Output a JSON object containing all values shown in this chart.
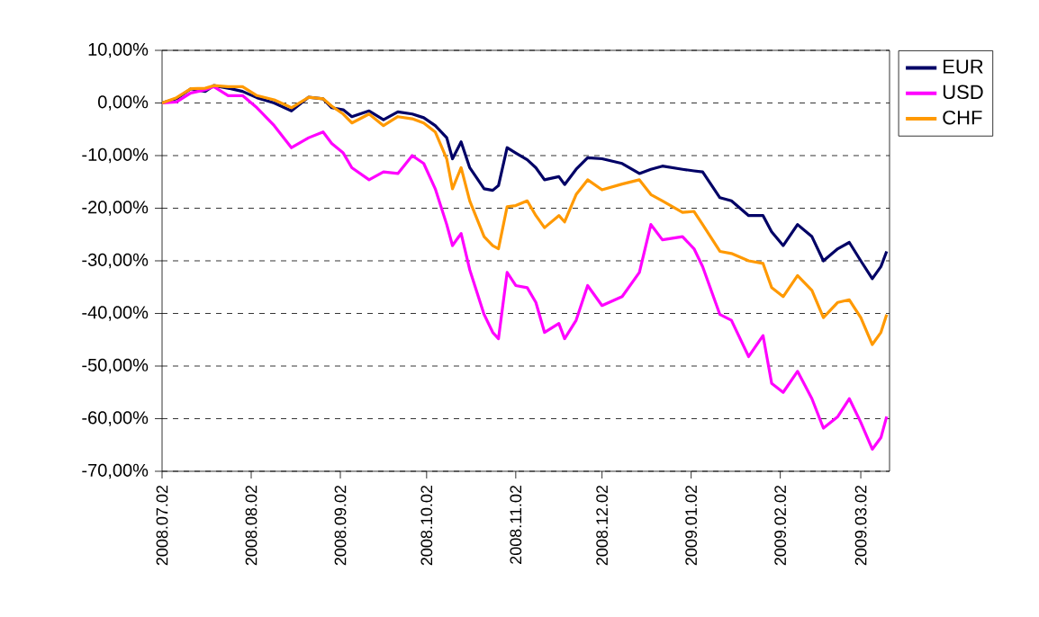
{
  "chart_data": {
    "type": "line",
    "x": [
      "2008-07-02",
      "2008-07-07",
      "2008-07-12",
      "2008-07-17",
      "2008-07-20",
      "2008-07-25",
      "2008-07-30",
      "2008-08-04",
      "2008-08-10",
      "2008-08-16",
      "2008-08-22",
      "2008-08-27",
      "2008-08-30",
      "2008-09-03",
      "2008-09-06",
      "2008-09-12",
      "2008-09-17",
      "2008-09-22",
      "2008-09-27",
      "2008-10-01",
      "2008-10-05",
      "2008-10-09",
      "2008-10-11",
      "2008-10-14",
      "2008-10-17",
      "2008-10-22",
      "2008-10-25",
      "2008-10-27",
      "2008-10-30",
      "2008-11-02",
      "2008-11-06",
      "2008-11-09",
      "2008-11-12",
      "2008-11-17",
      "2008-11-19",
      "2008-11-23",
      "2008-11-27",
      "2008-12-02",
      "2008-12-09",
      "2008-12-15",
      "2008-12-19",
      "2008-12-23",
      "2008-12-30",
      "2009-01-03",
      "2009-01-06",
      "2009-01-12",
      "2009-01-16",
      "2009-01-22",
      "2009-01-27",
      "2009-01-30",
      "2009-02-03",
      "2009-02-08",
      "2009-02-13",
      "2009-02-17",
      "2009-02-22",
      "2009-02-26",
      "2009-03-02",
      "2009-03-06",
      "2009-03-09",
      "2009-03-11"
    ],
    "series": [
      {
        "name": "EUR",
        "color": "#000066",
        "values": [
          0,
          0.8,
          2.7,
          2.2,
          3.3,
          2.8,
          2.2,
          1.0,
          0,
          -1.5,
          1.1,
          0.8,
          -0.9,
          -1.3,
          -2.6,
          -1.5,
          -3.2,
          -1.7,
          -2.1,
          -2.8,
          -4.3,
          -6.6,
          -10.6,
          -7.4,
          -12.3,
          -16.3,
          -16.6,
          -15.7,
          -8.5,
          -9.5,
          -10.8,
          -12.3,
          -14.6,
          -14.0,
          -15.5,
          -12.6,
          -10.4,
          -10.6,
          -11.5,
          -13.4,
          -12.6,
          -12.0,
          -12.6,
          -12.9,
          -13.1,
          -18.0,
          -18.6,
          -21.4,
          -21.4,
          -24.5,
          -27.1,
          -23.1,
          -25.4,
          -30.0,
          -27.7,
          -26.5,
          -30.0,
          -33.4,
          -31.1,
          -28.2
        ]
      },
      {
        "name": "USD",
        "color": "#ff00ff",
        "values": [
          0,
          0.2,
          1.9,
          2.5,
          3.1,
          1.4,
          1.4,
          -0.9,
          -4.3,
          -8.5,
          -6.6,
          -5.5,
          -7.7,
          -9.5,
          -12.3,
          -14.6,
          -13.1,
          -13.4,
          -10.0,
          -11.5,
          -16.3,
          -23.1,
          -27.1,
          -24.8,
          -31.7,
          -40.2,
          -43.6,
          -44.8,
          -32.2,
          -34.7,
          -35.1,
          -37.9,
          -43.6,
          -41.9,
          -44.8,
          -41.3,
          -34.7,
          -38.5,
          -36.8,
          -32.2,
          -23.1,
          -26.0,
          -25.4,
          -27.7,
          -31.1,
          -40.2,
          -41.3,
          -48.2,
          -44.2,
          -53.3,
          -55.0,
          -51.0,
          -56.2,
          -61.8,
          -59.6,
          -56.2,
          -60.7,
          -65.8,
          -63.6,
          -59.6
        ]
      },
      {
        "name": "CHF",
        "color": "#ff9900",
        "values": [
          0,
          1.0,
          2.7,
          2.8,
          3.3,
          3.1,
          3.1,
          1.4,
          0.6,
          -0.9,
          1.1,
          0.8,
          -0.6,
          -2.1,
          -3.8,
          -2.1,
          -4.3,
          -2.6,
          -3.0,
          -3.8,
          -5.5,
          -10.6,
          -16.3,
          -12.3,
          -18.6,
          -25.4,
          -27.1,
          -27.7,
          -19.7,
          -19.5,
          -18.6,
          -21.4,
          -23.7,
          -21.4,
          -22.6,
          -17.4,
          -14.6,
          -16.5,
          -15.4,
          -14.6,
          -17.4,
          -18.6,
          -20.8,
          -20.6,
          -23.1,
          -28.2,
          -28.6,
          -30.0,
          -30.5,
          -35.1,
          -36.8,
          -32.8,
          -35.6,
          -40.8,
          -37.9,
          -37.4,
          -40.8,
          -45.9,
          -43.6,
          -40.2
        ]
      }
    ],
    "xlim": [
      "2008-07-02",
      "2009-03-12"
    ],
    "xticks": [
      {
        "value": "2008-07-02",
        "label": "2008.07.02"
      },
      {
        "value": "2008-08-02",
        "label": "2008.08.02"
      },
      {
        "value": "2008-09-02",
        "label": "2008.09.02"
      },
      {
        "value": "2008-10-02",
        "label": "2008.10.02"
      },
      {
        "value": "2008-11-02",
        "label": "2008.11.02"
      },
      {
        "value": "2008-12-02",
        "label": "2008.12.02"
      },
      {
        "value": "2009-01-02",
        "label": "2009.01.02"
      },
      {
        "value": "2009-02-02",
        "label": "2009.02.02"
      },
      {
        "value": "2009-03-02",
        "label": "2009.03.02"
      }
    ],
    "ylim": [
      -70,
      10
    ],
    "yticks": [
      {
        "value": 10,
        "label": "10,00%"
      },
      {
        "value": 0,
        "label": "0,00%"
      },
      {
        "value": -10,
        "label": "-10,00%"
      },
      {
        "value": -20,
        "label": "-20,00%"
      },
      {
        "value": -30,
        "label": "-30,00%"
      },
      {
        "value": -40,
        "label": "-40,00%"
      },
      {
        "value": -50,
        "label": "-50,00%"
      },
      {
        "value": -60,
        "label": "-60,00%"
      },
      {
        "value": -70,
        "label": "-70,00%"
      }
    ],
    "grid": "y",
    "legend": "right",
    "marker": "none",
    "line_style": "solid"
  }
}
